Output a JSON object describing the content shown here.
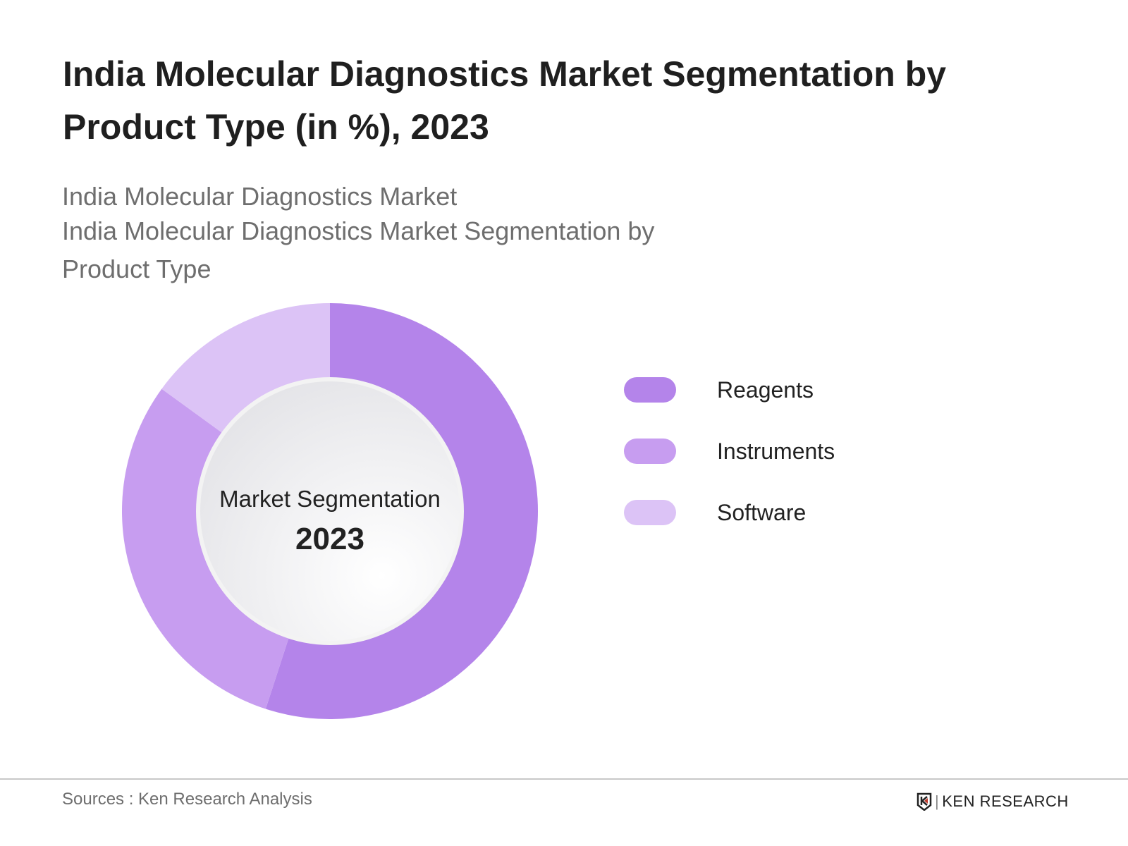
{
  "title": "India Molecular Diagnostics Market Segmentation by Product Type (in %), 2023",
  "subtitle_lines": [
    "India Molecular Diagnostics Market",
    "India Molecular Diagnostics Market Segmentation by",
    "Product Type"
  ],
  "chart_data": {
    "type": "pie",
    "variant": "donut",
    "title": "India Molecular Diagnostics Market Segmentation by Product Type (in %), 2023",
    "center_label": "Market Segmentation",
    "center_year": "2023",
    "categories": [
      "Reagents",
      "Instruments",
      "Software"
    ],
    "values": [
      55,
      30,
      15
    ],
    "colors": [
      "#b484ea",
      "#c79df0",
      "#dcc3f6"
    ],
    "legend_position": "right"
  },
  "footer": {
    "sources": "Sources : Ken Research Analysis",
    "logo_text": "KEN RESEARCH"
  }
}
